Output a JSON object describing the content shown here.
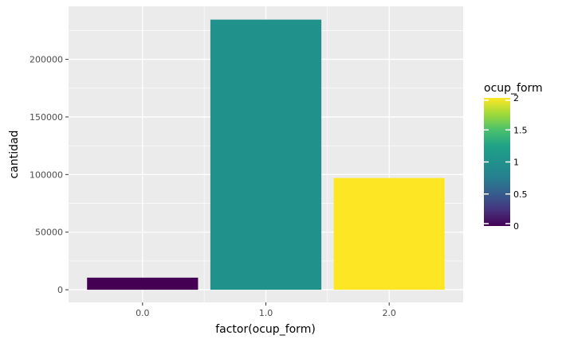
{
  "chart_data": {
    "type": "bar",
    "categories": [
      "0.0",
      "1.0",
      "2.0"
    ],
    "values": [
      10500,
      234500,
      97000
    ],
    "fill_values": [
      0,
      1,
      2
    ],
    "xlabel": "factor(ocup_form)",
    "ylabel": "cantidad",
    "ylim": [
      -11000,
      246000
    ],
    "yticks": [
      0,
      50000,
      100000,
      150000,
      200000
    ],
    "ytick_labels": [
      "0",
      "50000",
      "100000",
      "150000",
      "200000"
    ],
    "grid": true,
    "panel_background": "#ebebeb",
    "grid_color": "#ffffff",
    "legend": {
      "position": "right",
      "title": "ocup_form",
      "type": "colorbar",
      "range": [
        0,
        2
      ],
      "ticks": [
        0,
        0.5,
        1,
        1.5,
        2
      ],
      "tick_labels": [
        "0",
        "0.5",
        "1",
        "1.5",
        "2"
      ]
    },
    "colors": {
      "0": "#440154",
      "1": "#21918c",
      "2": "#fde725"
    }
  }
}
